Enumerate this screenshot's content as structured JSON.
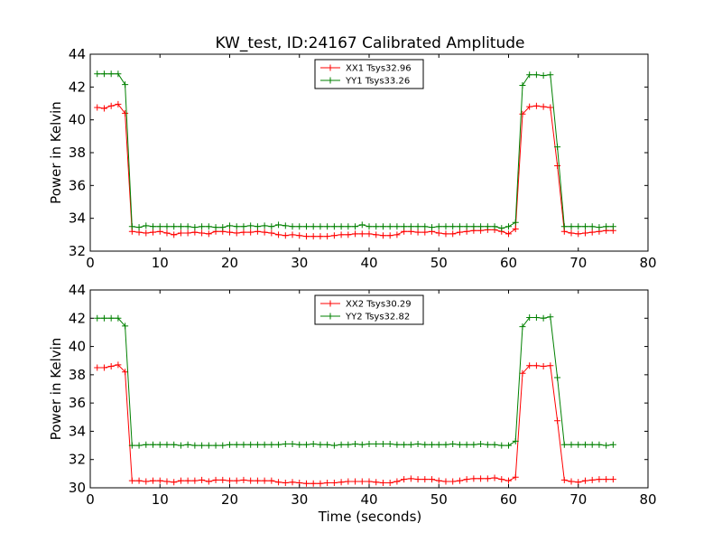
{
  "chart_data": [
    {
      "type": "line",
      "title": "KW_test, ID:24167 Calibrated Amplitude",
      "xlabel": "",
      "ylabel": "Power in Kelvin",
      "xlim": [
        0,
        80
      ],
      "ylim": [
        32,
        44
      ],
      "xticks": [
        0,
        10,
        20,
        30,
        40,
        50,
        60,
        70,
        80
      ],
      "yticks": [
        32,
        34,
        36,
        38,
        40,
        42,
        44
      ],
      "grid": false,
      "legend": "top-center",
      "x": [
        1,
        2,
        3,
        4,
        5,
        6,
        7,
        8,
        9,
        10,
        11,
        12,
        13,
        14,
        15,
        16,
        17,
        18,
        19,
        20,
        21,
        22,
        23,
        24,
        25,
        26,
        27,
        28,
        29,
        30,
        31,
        32,
        33,
        34,
        35,
        36,
        37,
        38,
        39,
        40,
        41,
        42,
        43,
        44,
        45,
        46,
        47,
        48,
        49,
        50,
        51,
        52,
        53,
        54,
        55,
        56,
        57,
        58,
        59,
        60,
        61,
        62,
        63,
        64,
        65,
        66,
        67,
        68,
        69,
        70,
        71,
        72,
        73,
        74,
        75
      ],
      "series": [
        {
          "name": "XX1 Tsys32.96",
          "color": "#ff0000",
          "values": [
            40.75,
            40.7,
            40.85,
            40.95,
            40.4,
            33.2,
            33.15,
            33.1,
            33.15,
            33.2,
            33.1,
            33.0,
            33.1,
            33.1,
            33.15,
            33.1,
            33.05,
            33.2,
            33.2,
            33.15,
            33.1,
            33.15,
            33.15,
            33.2,
            33.15,
            33.1,
            33.0,
            32.95,
            33.0,
            32.95,
            32.9,
            32.9,
            32.9,
            32.9,
            32.95,
            33.0,
            33.0,
            33.05,
            33.05,
            33.05,
            33.0,
            32.95,
            32.95,
            33.0,
            33.2,
            33.2,
            33.15,
            33.15,
            33.2,
            33.1,
            33.05,
            33.05,
            33.15,
            33.2,
            33.25,
            33.25,
            33.3,
            33.3,
            33.2,
            33.05,
            33.35,
            40.35,
            40.8,
            40.85,
            40.8,
            40.75,
            37.2,
            33.2,
            33.1,
            33.05,
            33.1,
            33.15,
            33.2,
            33.25,
            33.25
          ]
        },
        {
          "name": "YY1 Tsys33.26",
          "color": "#008000",
          "values": [
            42.8,
            42.8,
            42.8,
            42.8,
            42.15,
            33.5,
            33.45,
            33.55,
            33.5,
            33.5,
            33.5,
            33.5,
            33.5,
            33.5,
            33.45,
            33.5,
            33.5,
            33.45,
            33.45,
            33.55,
            33.5,
            33.5,
            33.55,
            33.5,
            33.55,
            33.5,
            33.6,
            33.55,
            33.5,
            33.5,
            33.5,
            33.5,
            33.5,
            33.5,
            33.5,
            33.5,
            33.5,
            33.5,
            33.6,
            33.5,
            33.5,
            33.5,
            33.5,
            33.5,
            33.5,
            33.5,
            33.5,
            33.5,
            33.45,
            33.5,
            33.5,
            33.5,
            33.5,
            33.5,
            33.5,
            33.5,
            33.5,
            33.5,
            33.4,
            33.5,
            33.75,
            42.1,
            42.75,
            42.75,
            42.7,
            42.75,
            38.35,
            33.5,
            33.5,
            33.5,
            33.5,
            33.5,
            33.45,
            33.5,
            33.5
          ]
        }
      ]
    },
    {
      "type": "line",
      "title": "",
      "xlabel": "Time (seconds)",
      "ylabel": "Power in Kelvin",
      "xlim": [
        0,
        80
      ],
      "ylim": [
        30,
        44
      ],
      "xticks": [
        0,
        10,
        20,
        30,
        40,
        50,
        60,
        70,
        80
      ],
      "yticks": [
        30,
        32,
        34,
        36,
        38,
        40,
        42,
        44
      ],
      "grid": false,
      "legend": "top-center",
      "x": [
        1,
        2,
        3,
        4,
        5,
        6,
        7,
        8,
        9,
        10,
        11,
        12,
        13,
        14,
        15,
        16,
        17,
        18,
        19,
        20,
        21,
        22,
        23,
        24,
        25,
        26,
        27,
        28,
        29,
        30,
        31,
        32,
        33,
        34,
        35,
        36,
        37,
        38,
        39,
        40,
        41,
        42,
        43,
        44,
        45,
        46,
        47,
        48,
        49,
        50,
        51,
        52,
        53,
        54,
        55,
        56,
        57,
        58,
        59,
        60,
        61,
        62,
        63,
        64,
        65,
        66,
        67,
        68,
        69,
        70,
        71,
        72,
        73,
        74,
        75
      ],
      "series": [
        {
          "name": "XX2 Tsys30.29",
          "color": "#ff0000",
          "values": [
            38.5,
            38.5,
            38.6,
            38.7,
            38.2,
            30.5,
            30.5,
            30.45,
            30.5,
            30.5,
            30.45,
            30.4,
            30.5,
            30.5,
            30.5,
            30.55,
            30.45,
            30.55,
            30.55,
            30.5,
            30.5,
            30.55,
            30.5,
            30.5,
            30.5,
            30.5,
            30.4,
            30.35,
            30.4,
            30.35,
            30.3,
            30.3,
            30.3,
            30.35,
            30.35,
            30.4,
            30.45,
            30.45,
            30.45,
            30.45,
            30.4,
            30.35,
            30.35,
            30.45,
            30.6,
            30.65,
            30.6,
            30.6,
            30.6,
            30.5,
            30.45,
            30.45,
            30.5,
            30.6,
            30.65,
            30.65,
            30.65,
            30.7,
            30.6,
            30.5,
            30.75,
            38.1,
            38.65,
            38.65,
            38.6,
            38.65,
            34.75,
            30.55,
            30.45,
            30.4,
            30.5,
            30.55,
            30.6,
            30.6,
            30.6
          ]
        },
        {
          "name": "YY2 Tsys32.82",
          "color": "#008000",
          "values": [
            42.0,
            42.0,
            42.0,
            42.0,
            41.45,
            33.0,
            33.0,
            33.05,
            33.05,
            33.05,
            33.05,
            33.05,
            33.0,
            33.05,
            33.0,
            33.0,
            33.0,
            33.0,
            33.0,
            33.05,
            33.05,
            33.05,
            33.05,
            33.05,
            33.05,
            33.05,
            33.05,
            33.1,
            33.1,
            33.05,
            33.05,
            33.1,
            33.05,
            33.05,
            33.0,
            33.05,
            33.05,
            33.1,
            33.05,
            33.1,
            33.1,
            33.1,
            33.1,
            33.05,
            33.05,
            33.05,
            33.1,
            33.05,
            33.05,
            33.05,
            33.05,
            33.1,
            33.05,
            33.05,
            33.05,
            33.1,
            33.05,
            33.05,
            33.0,
            33.0,
            33.3,
            41.4,
            42.05,
            42.05,
            42.0,
            42.1,
            37.8,
            33.05,
            33.05,
            33.05,
            33.05,
            33.05,
            33.05,
            33.0,
            33.05
          ]
        }
      ]
    }
  ]
}
